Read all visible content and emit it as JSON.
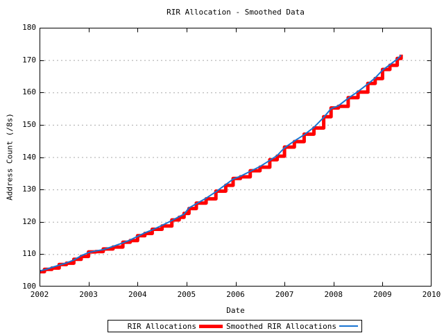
{
  "window": {
    "background": "#ffffff"
  },
  "colors": {
    "raw_series": "#ff0000",
    "smoothed_series": "#1874d2",
    "grid": "#a8a8a8",
    "axis": "#000000",
    "text": "#000000"
  },
  "legend": {
    "entries": [
      {
        "label": "RIR Allocations",
        "swatch": "thick-red-line"
      },
      {
        "label": "Smoothed RIR Allocations",
        "swatch": "thin-blue-line"
      }
    ]
  },
  "chart_data": {
    "type": "line",
    "title": "RIR Allocation - Smoothed Data",
    "xlabel": "Date",
    "ylabel": "Address Count (/8s)",
    "xlim": [
      2002,
      2010
    ],
    "ylim": [
      100,
      180
    ],
    "xticks": [
      2002,
      2003,
      2004,
      2005,
      2006,
      2007,
      2008,
      2009,
      2010
    ],
    "yticks": [
      100,
      110,
      120,
      130,
      140,
      150,
      160,
      170,
      180
    ],
    "grid": "horizontal-dashed-only",
    "legend_position": "below-plot-boxed",
    "series": [
      {
        "name": "RIR Allocations",
        "color": "#ff0000",
        "style": "steps",
        "stroke_width": 5,
        "points": [
          [
            2002.0,
            104.6
          ],
          [
            2002.1,
            105.3
          ],
          [
            2002.25,
            105.7
          ],
          [
            2002.4,
            106.8
          ],
          [
            2002.55,
            107.2
          ],
          [
            2002.7,
            108.4
          ],
          [
            2002.85,
            109.3
          ],
          [
            2003.0,
            110.7
          ],
          [
            2003.15,
            110.8
          ],
          [
            2003.3,
            111.6
          ],
          [
            2003.5,
            112.2
          ],
          [
            2003.7,
            113.7
          ],
          [
            2003.85,
            114.2
          ],
          [
            2004.0,
            115.7
          ],
          [
            2004.15,
            116.4
          ],
          [
            2004.3,
            117.7
          ],
          [
            2004.5,
            118.7
          ],
          [
            2004.7,
            120.6
          ],
          [
            2004.85,
            121.4
          ],
          [
            2004.95,
            122.6
          ],
          [
            2005.05,
            124.1
          ],
          [
            2005.2,
            125.8
          ],
          [
            2005.4,
            127.1
          ],
          [
            2005.6,
            129.5
          ],
          [
            2005.8,
            131.3
          ],
          [
            2005.95,
            133.4
          ],
          [
            2006.1,
            133.9
          ],
          [
            2006.3,
            135.8
          ],
          [
            2006.5,
            136.9
          ],
          [
            2006.7,
            139.2
          ],
          [
            2006.85,
            140.3
          ],
          [
            2007.0,
            143.1
          ],
          [
            2007.2,
            144.8
          ],
          [
            2007.4,
            147.1
          ],
          [
            2007.6,
            149.0
          ],
          [
            2007.8,
            152.5
          ],
          [
            2007.95,
            155.2
          ],
          [
            2008.1,
            155.7
          ],
          [
            2008.3,
            158.4
          ],
          [
            2008.5,
            160.1
          ],
          [
            2008.7,
            162.8
          ],
          [
            2008.85,
            164.3
          ],
          [
            2009.0,
            167.1
          ],
          [
            2009.15,
            168.4
          ],
          [
            2009.3,
            170.5
          ],
          [
            2009.38,
            171.7
          ]
        ]
      },
      {
        "name": "Smoothed RIR Allocations",
        "color": "#1874d2",
        "style": "line",
        "stroke_width": 2,
        "points": [
          [
            2002.0,
            104.8
          ],
          [
            2002.1,
            105.2
          ],
          [
            2002.25,
            105.9
          ],
          [
            2002.4,
            106.6
          ],
          [
            2002.55,
            107.3
          ],
          [
            2002.7,
            108.2
          ],
          [
            2002.85,
            109.5
          ],
          [
            2003.0,
            110.5
          ],
          [
            2003.15,
            111.0
          ],
          [
            2003.3,
            111.4
          ],
          [
            2003.5,
            112.4
          ],
          [
            2003.7,
            113.5
          ],
          [
            2003.85,
            114.4
          ],
          [
            2004.0,
            115.5
          ],
          [
            2004.15,
            116.6
          ],
          [
            2004.3,
            117.5
          ],
          [
            2004.5,
            118.9
          ],
          [
            2004.7,
            120.4
          ],
          [
            2004.85,
            121.6
          ],
          [
            2004.95,
            122.4
          ],
          [
            2005.05,
            124.3
          ],
          [
            2005.2,
            125.6
          ],
          [
            2005.4,
            127.3
          ],
          [
            2005.6,
            129.3
          ],
          [
            2005.8,
            131.5
          ],
          [
            2005.95,
            133.2
          ],
          [
            2006.1,
            134.1
          ],
          [
            2006.3,
            135.6
          ],
          [
            2006.5,
            137.1
          ],
          [
            2006.7,
            139.0
          ],
          [
            2006.85,
            140.5
          ],
          [
            2007.0,
            142.9
          ],
          [
            2007.2,
            145.0
          ],
          [
            2007.4,
            146.9
          ],
          [
            2007.6,
            149.2
          ],
          [
            2007.8,
            152.3
          ],
          [
            2007.95,
            155.0
          ],
          [
            2008.1,
            155.9
          ],
          [
            2008.3,
            158.2
          ],
          [
            2008.5,
            160.3
          ],
          [
            2008.7,
            162.6
          ],
          [
            2008.85,
            164.5
          ],
          [
            2009.0,
            166.9
          ],
          [
            2009.15,
            168.6
          ],
          [
            2009.3,
            170.3
          ],
          [
            2009.38,
            171.5
          ]
        ]
      }
    ]
  }
}
